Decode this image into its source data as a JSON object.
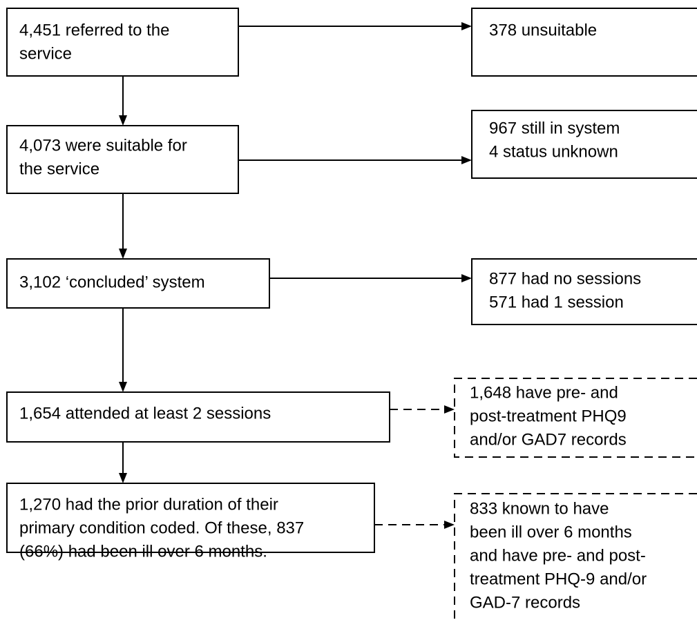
{
  "nodes": [
    {
      "lines": [
        "4,451 referred to the",
        "service"
      ]
    },
    {
      "lines": [
        "378 unsuitable"
      ]
    },
    {
      "lines": [
        "4,073 were suitable for",
        "the service"
      ]
    },
    {
      "lines": [
        "967 still in system",
        "4 status unknown"
      ]
    },
    {
      "lines": [
        "3,102 ‘concluded’ system"
      ]
    },
    {
      "lines": [
        "877 had no sessions",
        "571 had 1 session"
      ]
    },
    {
      "lines": [
        "1,654 attended at least 2 sessions"
      ]
    },
    {
      "lines": [
        "1,648 have pre- and",
        "post-treatment PHQ9",
        "and/or GAD7 records"
      ]
    },
    {
      "lines": [
        "1,270 had the prior duration of their",
        "primary condition coded. Of these, 837",
        "(66%) had been ill over 6 months."
      ]
    },
    {
      "lines": [
        "833 known to have",
        "been ill over 6 months",
        "and have pre- and post-",
        "treatment PHQ-9 and/or",
        "GAD-7 records"
      ]
    }
  ]
}
